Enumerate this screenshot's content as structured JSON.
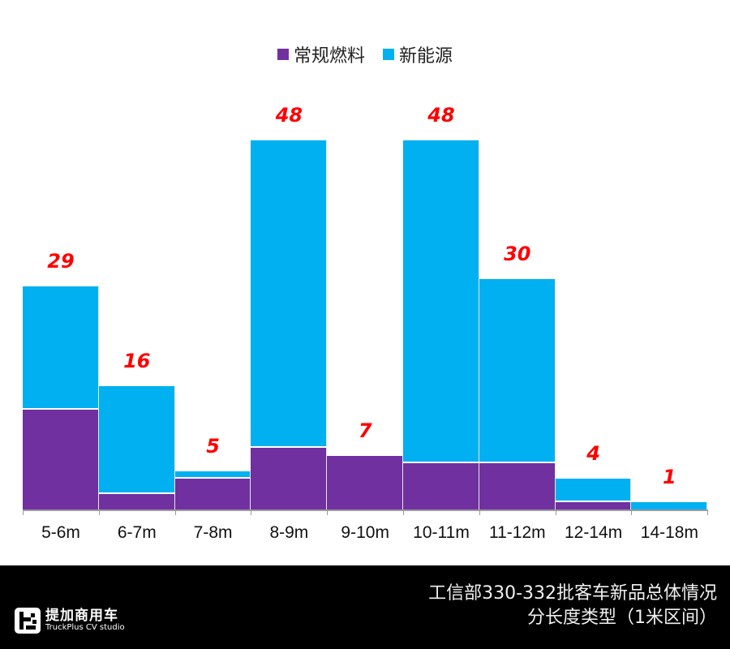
{
  "legend": [
    {
      "label": "常规燃料",
      "color": "#7030a0"
    },
    {
      "label": "新能源",
      "color": "#00b0f0"
    }
  ],
  "footer": {
    "title_line1": "工信部330-332批客车新品总体情况",
    "title_line2": "分长度类型（1米区间）",
    "logo_cn": "提加商用车",
    "logo_en": "TruckPlus CV studio"
  },
  "chart_data": {
    "type": "bar",
    "stacked": true,
    "title": "工信部330-332批客车新品总体情况 分长度类型（1米区间）",
    "xlabel": "",
    "ylabel": "",
    "categories": [
      "5-6m",
      "6-7m",
      "7-8m",
      "8-9m",
      "9-10m",
      "10-11m",
      "11-12m",
      "12-14m",
      "14-18m"
    ],
    "series": [
      {
        "name": "常规燃料",
        "color": "#7030a0",
        "values": [
          13,
          2,
          4,
          8,
          7,
          6,
          6,
          1,
          0
        ]
      },
      {
        "name": "新能源",
        "color": "#00b0f0",
        "values": [
          16,
          14,
          1,
          40,
          0,
          42,
          24,
          3,
          1
        ]
      }
    ],
    "totals": [
      29,
      16,
      5,
      48,
      7,
      48,
      30,
      4,
      1
    ],
    "total_label_color": "#ff0000",
    "ylim": [
      0,
      50
    ],
    "grid": false,
    "legend_position": "top"
  }
}
